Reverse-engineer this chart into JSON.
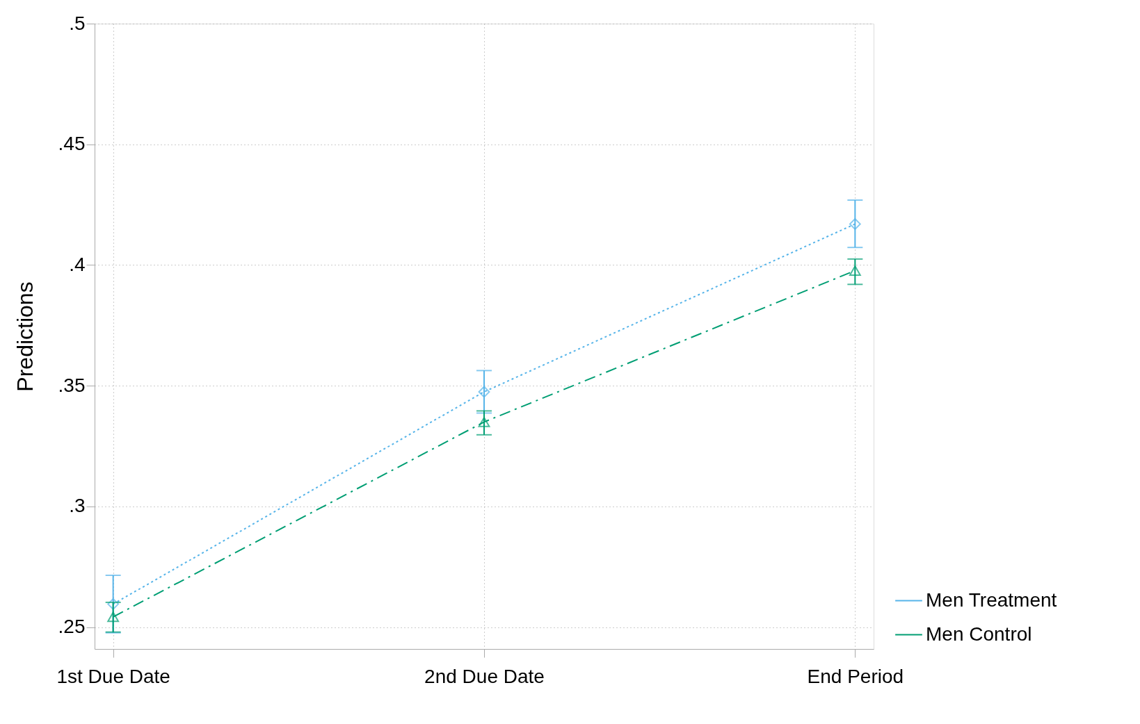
{
  "chart_data": {
    "type": "line",
    "ylabel": "Predictions",
    "categories": [
      "1st Due Date",
      "2nd Due Date",
      "End Period"
    ],
    "series": [
      {
        "name": "Men Treatment",
        "color": "#56b4e9",
        "values": [
          0.2596,
          0.3475,
          0.417
        ],
        "errors": [
          [
            0.2477,
            0.2715
          ],
          [
            0.3387,
            0.3563
          ],
          [
            0.4073,
            0.4269
          ]
        ],
        "marker": "diamond",
        "line_style": "dotted"
      },
      {
        "name": "Men Control",
        "color": "#009e73",
        "values": [
          0.2543,
          0.335,
          0.3977
        ],
        "errors": [
          [
            0.248,
            0.2603
          ],
          [
            0.3297,
            0.3396
          ],
          [
            0.392,
            0.4025
          ]
        ],
        "marker": "triangle",
        "line_style": "dashed"
      }
    ],
    "ylim": [
      0.241,
      0.5
    ],
    "yticks": [
      {
        "value": 0.25,
        "label": ".25"
      },
      {
        "value": 0.3,
        "label": ".3"
      },
      {
        "value": 0.35,
        "label": ".35"
      },
      {
        "value": 0.4,
        "label": ".4"
      },
      {
        "value": 0.45,
        "label": ".45"
      },
      {
        "value": 0.5,
        "label": ".5"
      }
    ],
    "grid": true,
    "legend": "bottom right"
  }
}
